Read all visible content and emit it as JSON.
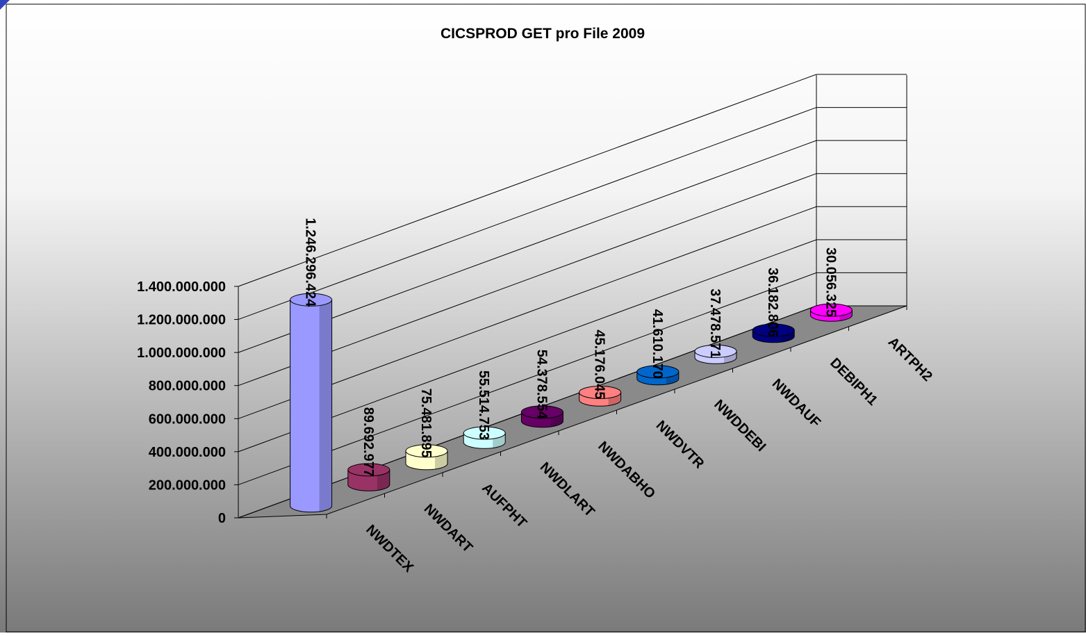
{
  "chart_data": {
    "type": "bar3d",
    "title": "CICSPROD GET pro File 2009",
    "categories": [
      "NWDTEX",
      "NWDART",
      "AUFPHT",
      "NWDLART",
      "NWDABHO",
      "NWDVTR",
      "NWDDEBI",
      "NWDAUF",
      "DEBIPH1",
      "ARTPH2"
    ],
    "values": [
      1246296424,
      89692977,
      75481895,
      55514753,
      54378554,
      45176045,
      41610170,
      37478571,
      36182806,
      30056325
    ],
    "value_labels": [
      "1.246.296.424",
      "89.692.977",
      "75.481.895",
      "55.514.753",
      "54.378.554",
      "45.176.045",
      "41.610.170",
      "37.478.571",
      "36.182.806",
      "30.056.325"
    ],
    "colors": [
      "#9999ff",
      "#993366",
      "#ffffcc",
      "#ccffff",
      "#660066",
      "#ff8080",
      "#0066cc",
      "#ccccff",
      "#000080",
      "#ff00ff"
    ],
    "ylim": [
      0,
      1400000000
    ],
    "yticks": [
      0,
      {
        "value": 200000000,
        "label": "200.000.000"
      },
      {
        "value": 400000000,
        "label": "400.000.000"
      },
      {
        "value": 600000000,
        "label": "600.000.000"
      },
      {
        "value": 800000000,
        "label": "800.000.000"
      },
      {
        "value": 1000000000,
        "label": "1.000.000.000"
      },
      {
        "value": 1200000000,
        "label": "1.200.000.000"
      },
      {
        "value": 1400000000,
        "label": "1.400.000.000"
      }
    ],
    "grid": true
  }
}
